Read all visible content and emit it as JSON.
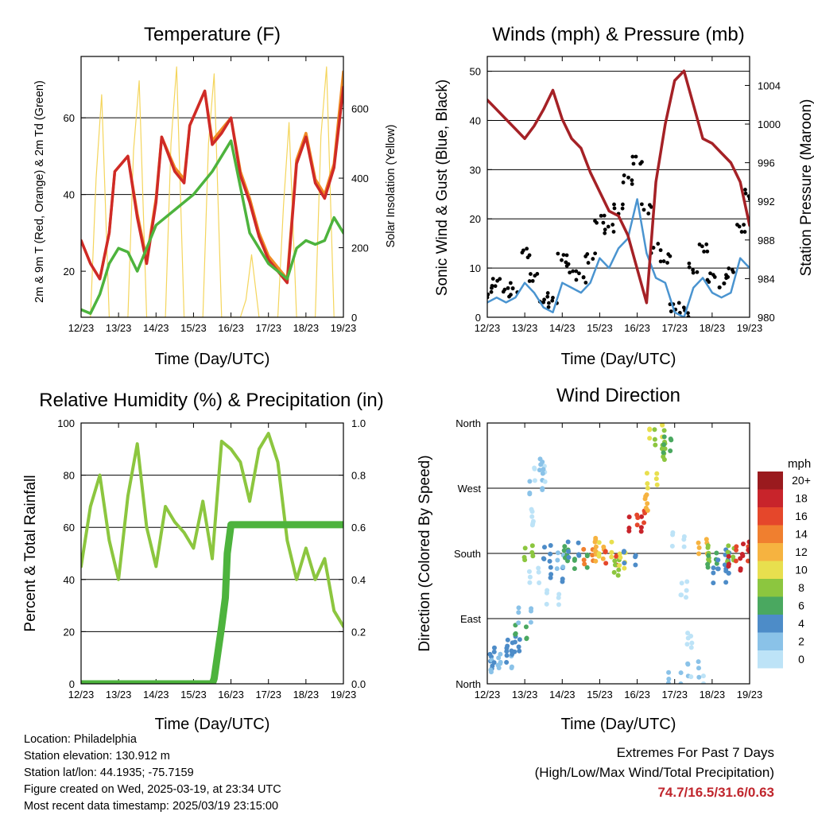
{
  "charts": [
    {
      "title": "Temperature (F)",
      "xlabel": "Time (Day/UTC)",
      "ylabel_left": "2m & 9m T (Red, Orange) & 2m Td (Green)",
      "ylabel_right": "Solar Insolation (Yellow)"
    },
    {
      "title": "Winds (mph) & Pressure (mb)",
      "xlabel": "Time (Day/UTC)",
      "ylabel_left": "Sonic Wind & Gust (Blue, Black)",
      "ylabel_right": "Station Pressure (Maroon)"
    },
    {
      "title": "Relative Humidity (%) & Precipitation (in)",
      "xlabel": "Time (Day/UTC)",
      "ylabel_left": "Percent & Total Rainfall",
      "ylabel_right": ""
    },
    {
      "title": "Wind Direction",
      "xlabel": "Time (Day/UTC)",
      "ylabel_left": "Direction (Colored By Speed)",
      "ylabel_right": "",
      "colorbar_title": "mph"
    }
  ],
  "chart_data": [
    {
      "type": "line",
      "x_ticks": [
        "12/23",
        "13/23",
        "14/23",
        "15/23",
        "16/23",
        "17/23",
        "18/23",
        "19/23"
      ],
      "ylim_left": [
        8,
        76
      ],
      "yticks_left": [
        "20",
        "40",
        "60"
      ],
      "ylim_right": [
        0,
        750
      ],
      "yticks_right": [
        "0",
        "200",
        "400",
        "600"
      ],
      "grid": "horizontal",
      "series": [
        {
          "color": "#f4d55c",
          "axis": "right",
          "x": [
            0,
            0.25,
            0.4,
            0.55,
            0.75,
            1.0,
            1.25,
            1.4,
            1.55,
            1.75,
            2.0,
            2.25,
            2.4,
            2.55,
            2.75,
            3.0,
            3.25,
            3.4,
            3.55,
            3.75,
            4.0,
            4.25,
            4.4,
            4.55,
            4.75,
            5.0,
            5.25,
            5.4,
            5.55,
            5.75,
            6.0,
            6.25,
            6.4,
            6.55,
            6.75,
            7.0
          ],
          "y": [
            0,
            0,
            400,
            640,
            0,
            0,
            0,
            480,
            680,
            0,
            0,
            0,
            500,
            720,
            0,
            0,
            0,
            500,
            700,
            0,
            0,
            0,
            50,
            180,
            0,
            0,
            0,
            320,
            560,
            0,
            0,
            0,
            520,
            720,
            0,
            0
          ]
        },
        {
          "color": "#f08a24",
          "axis": "left",
          "x": [
            0,
            0.25,
            0.5,
            0.75,
            0.9,
            1.25,
            1.5,
            1.75,
            2.0,
            2.15,
            2.5,
            2.75,
            2.9,
            3.3,
            3.5,
            3.75,
            4.0,
            4.25,
            4.5,
            4.75,
            5.0,
            5.25,
            5.5,
            5.75,
            6.0,
            6.25,
            6.5,
            6.75,
            7.0
          ],
          "y": [
            28,
            22,
            18,
            30,
            46,
            50,
            35,
            23,
            39,
            55,
            47,
            44,
            58,
            67,
            54,
            57,
            60,
            46,
            39,
            30,
            24,
            21,
            18,
            49,
            56,
            44,
            40,
            48,
            72
          ]
        },
        {
          "color": "#cf2a27",
          "axis": "left",
          "x": [
            0,
            0.25,
            0.5,
            0.75,
            0.9,
            1.25,
            1.5,
            1.75,
            2.0,
            2.15,
            2.5,
            2.75,
            2.9,
            3.3,
            3.5,
            3.75,
            4.0,
            4.25,
            4.5,
            4.75,
            5.0,
            5.25,
            5.5,
            5.75,
            6.0,
            6.25,
            6.5,
            6.75,
            7.0
          ],
          "y": [
            28,
            22,
            18,
            30,
            46,
            50,
            34,
            22,
            38,
            55,
            46,
            43,
            58,
            67,
            53,
            56,
            60,
            45,
            38,
            29,
            23,
            20,
            17,
            48,
            55,
            43,
            39,
            47,
            68
          ]
        },
        {
          "color": "#4db33d",
          "axis": "left",
          "x": [
            0,
            0.25,
            0.5,
            0.75,
            1.0,
            1.25,
            1.5,
            1.75,
            2.0,
            2.5,
            3.0,
            3.5,
            3.75,
            4.0,
            4.25,
            4.5,
            4.75,
            5.0,
            5.25,
            5.5,
            5.75,
            6.0,
            6.25,
            6.5,
            6.75,
            7.0
          ],
          "y": [
            10,
            9,
            14,
            22,
            26,
            25,
            20,
            26,
            32,
            36,
            40,
            46,
            50,
            54,
            42,
            30,
            26,
            22,
            20,
            18,
            26,
            28,
            27,
            28,
            34,
            30
          ]
        }
      ]
    },
    {
      "type": "line",
      "x_ticks": [
        "12/23",
        "13/23",
        "14/23",
        "15/23",
        "16/23",
        "17/23",
        "18/23",
        "19/23"
      ],
      "ylim_left": [
        0,
        53
      ],
      "yticks_left": [
        "0",
        "10",
        "20",
        "30",
        "40",
        "50"
      ],
      "ylim_right": [
        980,
        1007
      ],
      "yticks_right": [
        "980",
        "984",
        "988",
        "992",
        "996",
        "1000",
        "1004"
      ],
      "grid": "horizontal",
      "series": [
        {
          "color": "#000000",
          "style": "points",
          "axis": "left",
          "x": [
            0,
            0.25,
            0.5,
            0.75,
            1.0,
            1.25,
            1.5,
            1.75,
            2.0,
            2.25,
            2.5,
            2.75,
            3.0,
            3.25,
            3.5,
            3.75,
            4.0,
            4.25,
            4.5,
            4.75,
            5.0,
            5.25,
            5.5,
            5.75,
            6.0,
            6.25,
            6.5,
            6.75,
            7.0
          ],
          "y": [
            5,
            7,
            5,
            6,
            13,
            8,
            4,
            3,
            12,
            10,
            8,
            12,
            20,
            18,
            22,
            28,
            32,
            22,
            14,
            12,
            2,
            1,
            10,
            14,
            8,
            7,
            9,
            18,
            25
          ]
        },
        {
          "color": "#4a94d0",
          "axis": "left",
          "x": [
            0,
            0.25,
            0.5,
            0.75,
            1.0,
            1.25,
            1.5,
            1.75,
            2.0,
            2.25,
            2.5,
            2.75,
            3.0,
            3.25,
            3.5,
            3.75,
            4.0,
            4.25,
            4.5,
            4.75,
            5.0,
            5.25,
            5.5,
            5.75,
            6.0,
            6.25,
            6.5,
            6.75,
            7.0
          ],
          "y": [
            3,
            4,
            3,
            4,
            7,
            5,
            2,
            1,
            7,
            6,
            5,
            7,
            12,
            10,
            14,
            16,
            24,
            13,
            8,
            7,
            1,
            0,
            6,
            8,
            5,
            4,
            5,
            12,
            10
          ]
        },
        {
          "color": "#a52126",
          "axis": "right",
          "x": [
            0,
            0.25,
            0.5,
            0.75,
            1.0,
            1.25,
            1.5,
            1.75,
            2.0,
            2.25,
            2.5,
            2.75,
            3.0,
            3.25,
            3.5,
            3.75,
            4.0,
            4.25,
            4.5,
            4.75,
            5.0,
            5.25,
            5.5,
            5.75,
            6.0,
            6.25,
            6.5,
            6.75,
            7.0
          ],
          "y": [
            1002.5,
            1001.5,
            1000.5,
            999.5,
            998.5,
            999.8,
            1001.5,
            1003.5,
            1000.5,
            998.5,
            997.5,
            995.0,
            993.0,
            991.0,
            990.5,
            988.5,
            985.0,
            981.5,
            994.0,
            1000.0,
            1004.5,
            1005.5,
            1002.0,
            998.5,
            998.0,
            997.0,
            996.0,
            994.0,
            989.5
          ]
        }
      ]
    },
    {
      "type": "line",
      "x_ticks": [
        "12/23",
        "13/23",
        "14/23",
        "15/23",
        "16/23",
        "17/23",
        "18/23",
        "19/23"
      ],
      "ylim_left": [
        0,
        100
      ],
      "yticks_left": [
        "0",
        "20",
        "40",
        "60",
        "80",
        "100"
      ],
      "ylim_right": [
        0,
        1.0
      ],
      "yticks_right": [
        "0.0",
        "0.2",
        "0.4",
        "0.6",
        "0.8",
        "1.0"
      ],
      "grid": "horizontal",
      "series": [
        {
          "color": "#8cc63f",
          "axis": "left",
          "x": [
            0,
            0.25,
            0.5,
            0.75,
            1.0,
            1.25,
            1.5,
            1.75,
            2.0,
            2.25,
            2.5,
            2.75,
            3.0,
            3.25,
            3.5,
            3.75,
            4.0,
            4.25,
            4.5,
            4.75,
            5.0,
            5.25,
            5.5,
            5.75,
            6.0,
            6.25,
            6.5,
            6.75,
            7.0
          ],
          "y": [
            45,
            68,
            80,
            55,
            40,
            72,
            92,
            60,
            45,
            68,
            62,
            58,
            52,
            70,
            48,
            93,
            90,
            85,
            70,
            90,
            96,
            85,
            55,
            40,
            52,
            40,
            48,
            28,
            22
          ]
        },
        {
          "color": "#4db33d",
          "axis": "right",
          "x": [
            0,
            0.5,
            1.0,
            1.5,
            2.0,
            2.5,
            3.0,
            3.5,
            3.55,
            3.65,
            3.75,
            3.85,
            3.9,
            4.0,
            4.5,
            5.0,
            5.5,
            6.0,
            6.5,
            7.0
          ],
          "y": [
            0,
            0,
            0,
            0,
            0,
            0,
            0,
            0,
            0.02,
            0.12,
            0.22,
            0.33,
            0.5,
            0.61,
            0.61,
            0.61,
            0.61,
            0.61,
            0.61,
            0.61
          ]
        }
      ]
    },
    {
      "type": "scatter",
      "x_ticks": [
        "12/23",
        "13/23",
        "14/23",
        "15/23",
        "16/23",
        "17/23",
        "18/23",
        "19/23"
      ],
      "ylim_left": [
        0,
        360
      ],
      "yticks_left": [
        "North",
        "East",
        "South",
        "West",
        "North"
      ],
      "grid": "horizontal",
      "colorbar_levels": [
        "0",
        "2",
        "4",
        "6",
        "8",
        "10",
        "12",
        "14",
        "16",
        "18",
        "20+"
      ],
      "colorbar_colors": [
        "#bde3f7",
        "#8ac2e8",
        "#4d8cc8",
        "#4aa860",
        "#8cc63f",
        "#e8df4e",
        "#f6b340",
        "#f07f2f",
        "#e5472b",
        "#c8242b",
        "#9a1a1e"
      ],
      "x": [
        0.1,
        0.2,
        0.35,
        0.5,
        0.6,
        0.8,
        0.9,
        1.0,
        1.1,
        1.2,
        1.25,
        1.3,
        1.4,
        1.45,
        1.6,
        1.75,
        1.85,
        1.95,
        2.1,
        2.3,
        2.5,
        2.7,
        2.9,
        3.0,
        3.15,
        3.3,
        3.45,
        3.6,
        3.8,
        3.95,
        4.1,
        4.25,
        4.4,
        4.5,
        4.6,
        4.7,
        4.8,
        5.0,
        5.1,
        5.25,
        5.4,
        5.5,
        5.6,
        5.75,
        5.9,
        6.0,
        6.2,
        6.3,
        6.4,
        6.5,
        6.6,
        6.8,
        6.9
      ],
      "y": [
        30,
        25,
        40,
        30,
        50,
        55,
        70,
        95,
        180,
        230,
        150,
        270,
        290,
        300,
        180,
        120,
        150,
        170,
        180,
        185,
        170,
        175,
        190,
        180,
        185,
        175,
        160,
        170,
        175,
        220,
        230,
        250,
        280,
        350,
        340,
        320,
        330,
        5,
        200,
        130,
        60,
        20,
        0,
        190,
        180,
        170,
        150,
        160,
        175,
        180,
        165,
        180,
        185
      ],
      "speed": [
        4,
        3,
        4,
        3,
        5,
        5,
        6,
        2,
        9,
        1,
        1,
        2,
        1,
        2,
        4,
        1,
        4,
        3,
        6,
        4,
        6,
        15,
        12,
        13,
        10,
        16,
        8,
        10,
        5,
        18,
        16,
        12,
        10,
        10,
        8,
        8,
        6,
        3,
        1,
        1,
        1,
        2,
        1,
        12,
        8,
        6,
        4,
        4,
        5,
        8,
        18,
        16,
        18
      ]
    }
  ],
  "footer": {
    "location": "Location: Philadelphia",
    "elevation": "Station elevation: 130.912 m",
    "latlon": "Station lat/lon: 44.1935; -75.7159",
    "created": "Figure created on Wed, 2025-03-19, at 23:34 UTC",
    "recent": "Most recent data timestamp: 2025/03/19 23:15:00"
  },
  "extremes": {
    "line1": "Extremes For Past 7 Days",
    "line2": "(High/Low/Max Wind/Total Precipitation)",
    "value": "74.7/16.5/31.6/0.63"
  }
}
